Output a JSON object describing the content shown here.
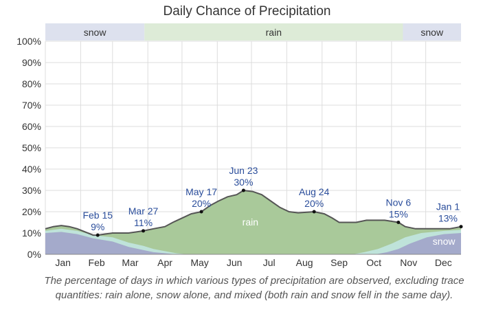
{
  "chart_data": {
    "type": "area",
    "title": "Daily Chance of Precipitation",
    "caption": "The percentage of days in which various types of precipitation are observed, excluding trace quantities: rain alone, snow alone, and mixed (both rain and snow fell in the same day).",
    "ylim": [
      0,
      100
    ],
    "y_ticks": [
      "0%",
      "10%",
      "20%",
      "30%",
      "40%",
      "50%",
      "60%",
      "70%",
      "80%",
      "90%",
      "100%"
    ],
    "grid": true,
    "months": [
      "Jan",
      "Feb",
      "Mar",
      "Apr",
      "May",
      "Jun",
      "Jul",
      "Aug",
      "Sep",
      "Oct",
      "Nov",
      "Dec"
    ],
    "month_starts": [
      0,
      31,
      59,
      90,
      120,
      151,
      181,
      212,
      243,
      273,
      304,
      334
    ],
    "season_bands": [
      {
        "label": "snow",
        "start_day": 0,
        "end_day": 87,
        "color": "#dde1ee"
      },
      {
        "label": "rain",
        "start_day": 87,
        "end_day": 314,
        "color": "#ddebd7"
      },
      {
        "label": "snow",
        "start_day": 314,
        "end_day": 365,
        "color": "#dde1ee"
      }
    ],
    "colors": {
      "rain": "#a9c99a",
      "snow": "#a4aacb",
      "mixed": "#bfe3da",
      "line": "#555555",
      "label": "#2a4d9b"
    },
    "series": [
      {
        "key": "total",
        "points": [
          [
            0,
            12
          ],
          [
            7,
            13
          ],
          [
            14,
            13.5
          ],
          [
            21,
            13
          ],
          [
            28,
            12
          ],
          [
            35,
            10.5
          ],
          [
            42,
            9
          ],
          [
            46,
            9
          ],
          [
            52,
            9.5
          ],
          [
            59,
            10
          ],
          [
            66,
            10
          ],
          [
            73,
            10
          ],
          [
            80,
            10.5
          ],
          [
            86,
            11
          ],
          [
            95,
            12
          ],
          [
            105,
            13
          ],
          [
            112,
            15
          ],
          [
            120,
            17
          ],
          [
            128,
            19
          ],
          [
            137,
            20
          ],
          [
            145,
            23
          ],
          [
            152,
            25
          ],
          [
            160,
            27
          ],
          [
            168,
            28
          ],
          [
            174,
            30
          ],
          [
            182,
            29.5
          ],
          [
            190,
            28
          ],
          [
            198,
            25
          ],
          [
            206,
            22
          ],
          [
            214,
            20
          ],
          [
            222,
            19.5
          ],
          [
            236,
            20
          ],
          [
            245,
            19
          ],
          [
            252,
            17
          ],
          [
            258,
            15
          ],
          [
            266,
            15
          ],
          [
            273,
            15
          ],
          [
            282,
            16
          ],
          [
            290,
            16
          ],
          [
            298,
            16
          ],
          [
            310,
            15
          ],
          [
            316,
            13
          ],
          [
            325,
            12
          ],
          [
            335,
            12
          ],
          [
            345,
            12
          ],
          [
            355,
            12
          ],
          [
            360,
            12.5
          ],
          [
            365,
            13
          ]
        ]
      },
      {
        "key": "snow",
        "points": [
          [
            0,
            10
          ],
          [
            14,
            10.5
          ],
          [
            28,
            9.5
          ],
          [
            42,
            7.5
          ],
          [
            59,
            6
          ],
          [
            73,
            3.5
          ],
          [
            86,
            2
          ],
          [
            95,
            1
          ],
          [
            105,
            0.5
          ],
          [
            115,
            0
          ],
          [
            290,
            0
          ],
          [
            300,
            1
          ],
          [
            310,
            2.5
          ],
          [
            320,
            5
          ],
          [
            335,
            8
          ],
          [
            350,
            9.5
          ],
          [
            365,
            10
          ]
        ]
      },
      {
        "key": "mixed",
        "points": [
          [
            0,
            11
          ],
          [
            14,
            12
          ],
          [
            28,
            11
          ],
          [
            42,
            9
          ],
          [
            59,
            8
          ],
          [
            73,
            5.5
          ],
          [
            86,
            4
          ],
          [
            95,
            2.5
          ],
          [
            105,
            1.5
          ],
          [
            115,
            0.5
          ],
          [
            125,
            0
          ],
          [
            270,
            0
          ],
          [
            280,
            1
          ],
          [
            292,
            2.5
          ],
          [
            304,
            5
          ],
          [
            316,
            8
          ],
          [
            330,
            10
          ],
          [
            350,
            11
          ],
          [
            365,
            11.5
          ]
        ]
      }
    ],
    "area_labels": [
      {
        "text": "rain",
        "day": 180,
        "value": 13.5
      },
      {
        "text": "snow",
        "day": 350,
        "value": 4.5
      }
    ],
    "annotations": [
      {
        "date": "Feb 15",
        "value_label": "9%",
        "day": 46,
        "value": 9
      },
      {
        "date": "Mar 27",
        "value_label": "11%",
        "day": 86,
        "value": 11
      },
      {
        "date": "May 17",
        "value_label": "20%",
        "day": 137,
        "value": 20
      },
      {
        "date": "Jun 23",
        "value_label": "30%",
        "day": 174,
        "value": 30
      },
      {
        "date": "Aug 24",
        "value_label": "20%",
        "day": 236,
        "value": 20
      },
      {
        "date": "Nov 6",
        "value_label": "15%",
        "day": 310,
        "value": 15
      },
      {
        "date": "Jan 1",
        "value_label": "13%",
        "day": 365,
        "value": 13
      }
    ]
  }
}
